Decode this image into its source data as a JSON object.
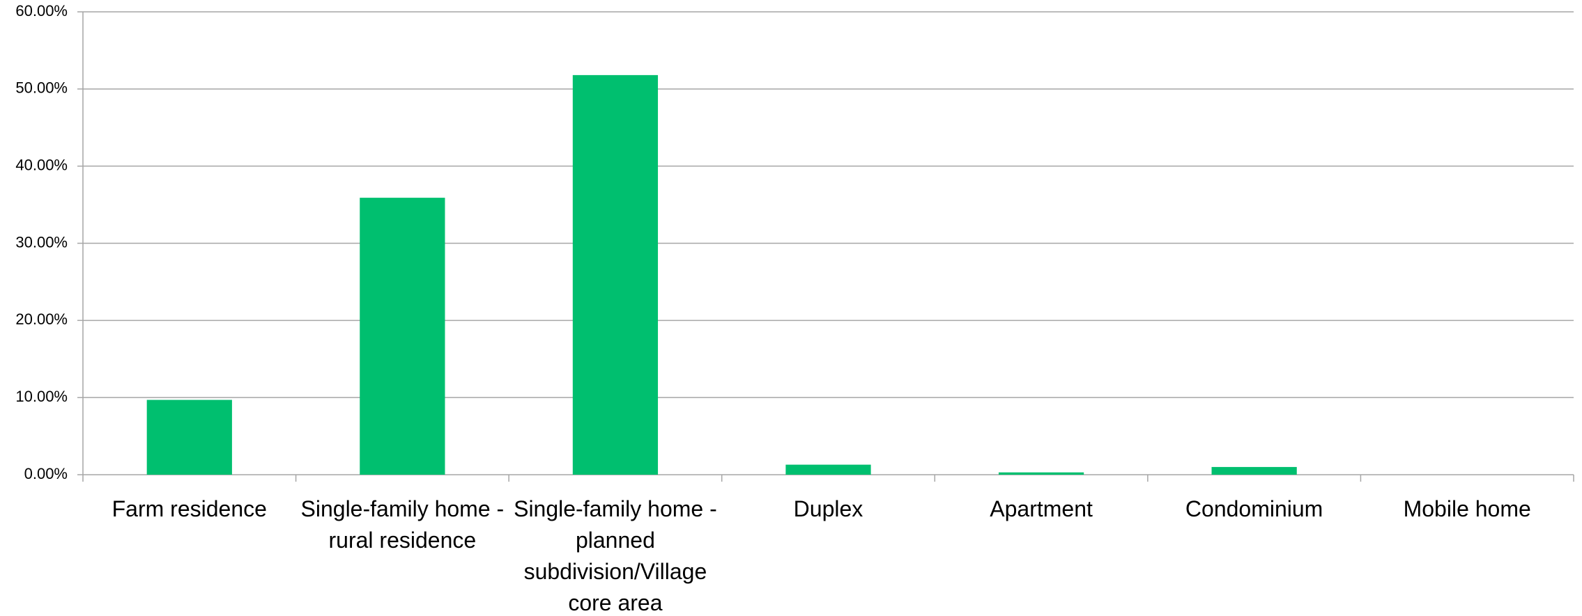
{
  "chart_data": {
    "type": "bar",
    "categories": [
      "Farm residence",
      "Single-family home - rural residence",
      "Single-family home - planned subdivision/Village core area",
      "Duplex",
      "Apartment",
      "Condominium",
      "Mobile home"
    ],
    "values": [
      9.7,
      35.9,
      51.8,
      1.3,
      0.3,
      1.0,
      0
    ],
    "color": "#00bf6f",
    "ylim": [
      0,
      60
    ],
    "yticks": [
      {
        "value": 0,
        "label": "0.00%"
      },
      {
        "value": 10,
        "label": "10.00%"
      },
      {
        "value": 20,
        "label": "20.00%"
      },
      {
        "value": 30,
        "label": "30.00%"
      },
      {
        "value": 40,
        "label": "40.00%"
      },
      {
        "value": 50,
        "label": "50.00%"
      },
      {
        "value": 60,
        "label": "60.00%"
      }
    ],
    "grid": true
  }
}
